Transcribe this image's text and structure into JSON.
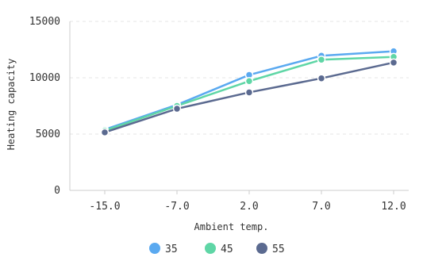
{
  "chart_data": {
    "type": "line",
    "title": "",
    "xlabel": "Ambient temp.",
    "ylabel": "Heating capacity",
    "categories": [
      "-15.0",
      "-7.0",
      "2.0",
      "7.0",
      "12.0"
    ],
    "ylim": [
      0,
      15000
    ],
    "yticks": [
      "0",
      "5000",
      "10000",
      "15000"
    ],
    "grid": true,
    "legend_position": "bottom-center",
    "series": [
      {
        "name": "35",
        "color": "#5aa9f0",
        "values": [
          5400,
          7600,
          10250,
          11950,
          12350
        ]
      },
      {
        "name": "45",
        "color": "#5fd6a6",
        "values": [
          5300,
          7500,
          9700,
          11600,
          11850
        ]
      },
      {
        "name": "55",
        "color": "#5b6a90",
        "values": [
          5150,
          7250,
          8700,
          9950,
          11350
        ]
      }
    ]
  }
}
